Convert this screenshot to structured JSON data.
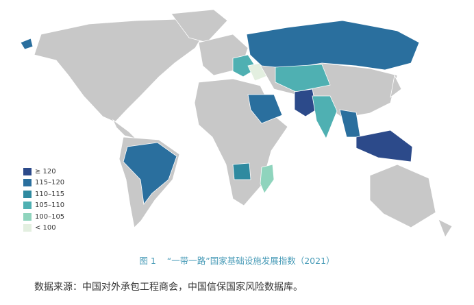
{
  "legend": [
    {
      "label": "≥ 120",
      "color": "#2c4a8a"
    },
    {
      "label": "115–120",
      "color": "#2a6f9e"
    },
    {
      "label": "110–115",
      "color": "#2f8aa0"
    },
    {
      "label": "105–110",
      "color": "#4fb0b2"
    },
    {
      "label": "100–105",
      "color": "#8fd4bd"
    },
    {
      "label": "< 100",
      "color": "#e3efe0"
    }
  ],
  "caption": {
    "fig": "图 1",
    "title": "“一带一路”国家基础设施发展指数（2021）"
  },
  "source": "数据来源：中国对外承包工程商会，中国信保国家风险数据库。"
}
